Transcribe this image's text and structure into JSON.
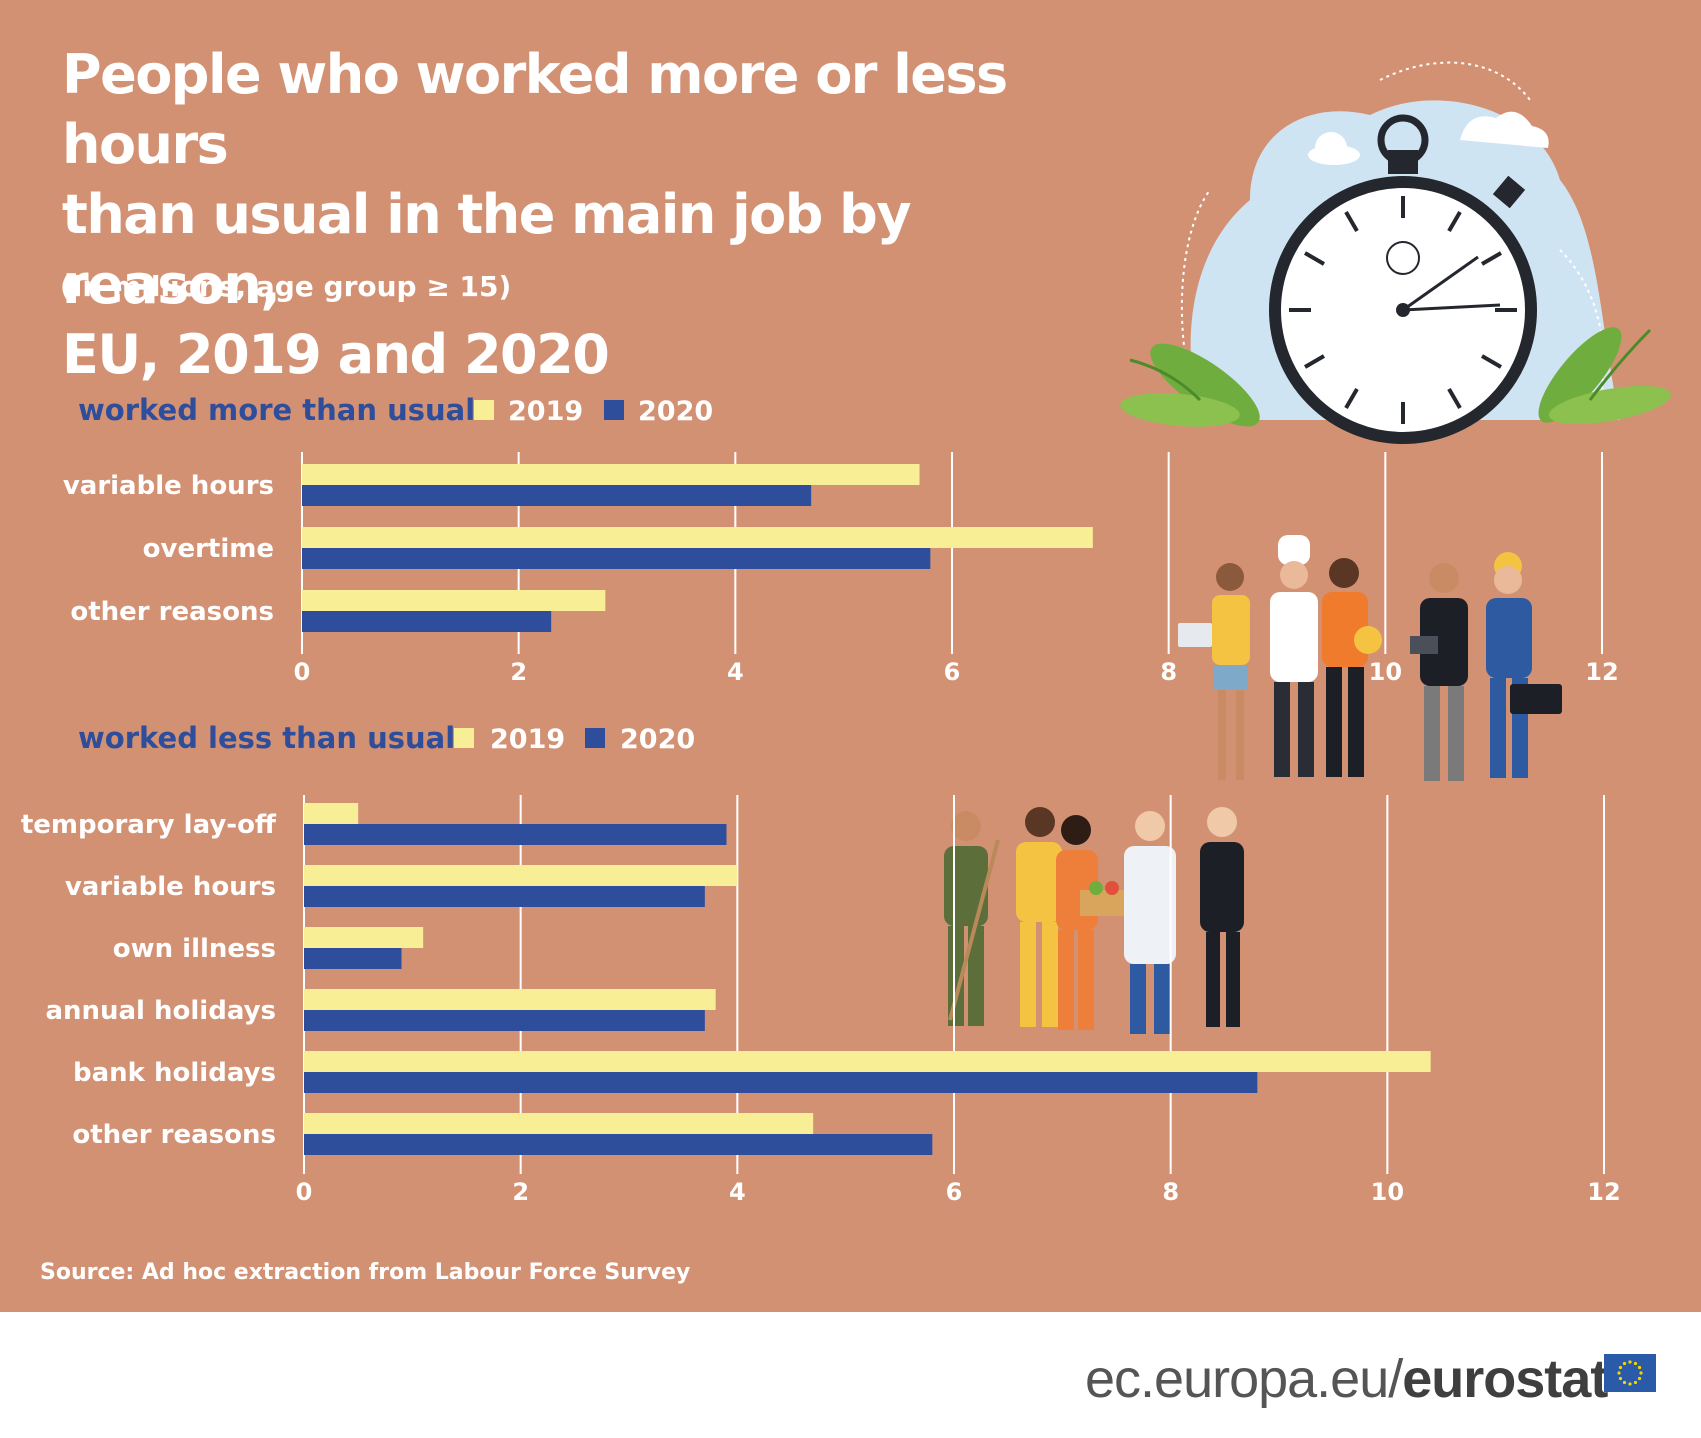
{
  "header": {
    "title_lines": [
      "People who worked more or less hours",
      "than usual in the main job by reason,",
      "EU, 2019 and 2020"
    ],
    "subtitle": "(in millions, age group ≥ 15)"
  },
  "source": "Source: Ad hoc extraction from Labour Force Survey",
  "brand": {
    "prefix": "ec.europa.eu/",
    "name": "eurostat"
  },
  "colors": {
    "background": "#d39174",
    "series_2019": "#f8ee96",
    "series_2020": "#2e4d9b",
    "heading": "#2e4d9b",
    "grid": "#ffffff",
    "text": "#ffffff"
  },
  "chart_data": [
    {
      "type": "bar",
      "orientation": "horizontal",
      "title": "worked more than usual",
      "categories": [
        "variable hours",
        "overtime",
        "other reasons"
      ],
      "series": [
        {
          "name": "2019",
          "values": [
            5.7,
            7.3,
            2.8
          ]
        },
        {
          "name": "2020",
          "values": [
            4.7,
            5.8,
            2.3
          ]
        }
      ],
      "xlim": [
        0,
        12
      ],
      "xticks": [
        "0",
        "2",
        "4",
        "6",
        "8",
        "10",
        "12"
      ],
      "grid": true,
      "legend": "top, inline with heading"
    },
    {
      "type": "bar",
      "orientation": "horizontal",
      "title": "worked less than usual",
      "categories": [
        "temporary lay-off",
        "variable hours",
        "own illness",
        "annual holidays",
        "bank holidays",
        "other reasons"
      ],
      "series": [
        {
          "name": "2019",
          "values": [
            0.5,
            4.0,
            1.1,
            3.8,
            10.4,
            4.7
          ]
        },
        {
          "name": "2020",
          "values": [
            3.9,
            3.7,
            0.9,
            3.7,
            8.8,
            5.8
          ]
        }
      ],
      "xlim": [
        0,
        12
      ],
      "xticks": [
        "0",
        "2",
        "4",
        "6",
        "8",
        "10",
        "12"
      ],
      "grid": true,
      "legend": "top, inline with heading"
    }
  ]
}
